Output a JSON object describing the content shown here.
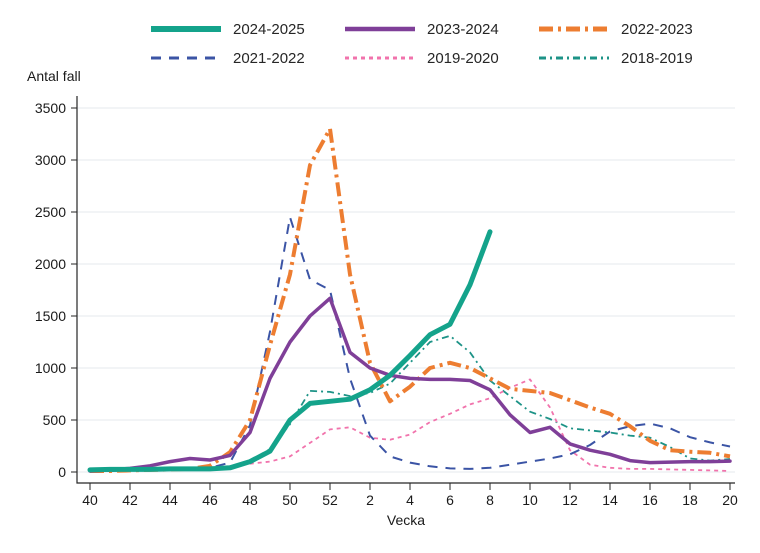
{
  "chart_data": {
    "type": "line",
    "title": "",
    "xlabel": "Vecka",
    "ylabel": "Antal fall",
    "ylim": [
      0,
      3500
    ],
    "y_ticks": [
      0,
      500,
      1000,
      1500,
      2000,
      2500,
      3000,
      3500
    ],
    "x_tick_labels": [
      "40",
      "42",
      "44",
      "46",
      "48",
      "50",
      "52",
      "2",
      "4",
      "6",
      "8",
      "10",
      "12",
      "14",
      "16",
      "18",
      "20"
    ],
    "weeks": [
      "40",
      "41",
      "42",
      "43",
      "44",
      "45",
      "46",
      "47",
      "48",
      "49",
      "50",
      "51",
      "52",
      "1",
      "2",
      "3",
      "4",
      "5",
      "6",
      "7",
      "8",
      "9",
      "10",
      "11",
      "12",
      "13",
      "14",
      "15",
      "16",
      "17",
      "18",
      "19",
      "20"
    ],
    "grid": "horizontal",
    "legend_position": "top",
    "colors": {
      "grid": "#e9eef1",
      "axis": "#262626",
      "text": "#1a1a1a"
    },
    "series": [
      {
        "name": "2024-2025",
        "color": "#14a38b",
        "dash": "solid",
        "width": 5,
        "values": [
          20,
          25,
          25,
          25,
          30,
          30,
          30,
          40,
          100,
          200,
          500,
          660,
          680,
          700,
          790,
          930,
          1120,
          1320,
          1420,
          1800,
          2310
        ]
      },
      {
        "name": "2023-2024",
        "color": "#7f3f98",
        "dash": "solid",
        "width": 3.5,
        "values": [
          10,
          20,
          35,
          60,
          100,
          130,
          115,
          160,
          380,
          900,
          1250,
          1500,
          1670,
          1150,
          1000,
          930,
          900,
          890,
          890,
          880,
          790,
          550,
          380,
          430,
          270,
          210,
          170,
          110,
          90,
          95,
          100,
          100,
          105
        ]
      },
      {
        "name": "2022-2023",
        "color": "#ed7d31",
        "dash": "14 5 3 5",
        "width": 4,
        "values": [
          10,
          10,
          15,
          20,
          25,
          30,
          60,
          190,
          500,
          1220,
          1900,
          2950,
          3300,
          1900,
          1050,
          680,
          820,
          1000,
          1050,
          1000,
          900,
          800,
          780,
          760,
          690,
          620,
          560,
          440,
          300,
          210,
          195,
          185,
          150
        ]
      },
      {
        "name": "2021-2022",
        "color": "#3b54a5",
        "dash": "10 8",
        "width": 2,
        "values": [
          10,
          10,
          15,
          15,
          20,
          25,
          40,
          90,
          450,
          1350,
          2450,
          1850,
          1750,
          900,
          350,
          150,
          90,
          55,
          35,
          30,
          40,
          70,
          100,
          130,
          170,
          260,
          390,
          440,
          465,
          420,
          335,
          285,
          245
        ]
      },
      {
        "name": "2019-2020",
        "color": "#f173ac",
        "dash": "4 4",
        "width": 1.8,
        "values": [
          15,
          20,
          25,
          30,
          35,
          35,
          40,
          55,
          80,
          100,
          150,
          280,
          410,
          430,
          330,
          310,
          360,
          480,
          560,
          650,
          710,
          810,
          890,
          620,
          210,
          70,
          40,
          30,
          30,
          25,
          20,
          15,
          10
        ]
      },
      {
        "name": "2018-2019",
        "color": "#1d9387",
        "dash": "7 4 2 4",
        "width": 1.8,
        "values": [
          10,
          10,
          15,
          15,
          20,
          25,
          30,
          50,
          110,
          220,
          460,
          780,
          770,
          730,
          760,
          850,
          1050,
          1250,
          1310,
          1150,
          880,
          730,
          580,
          510,
          420,
          400,
          380,
          350,
          330,
          240,
          130,
          110,
          125
        ]
      }
    ]
  }
}
